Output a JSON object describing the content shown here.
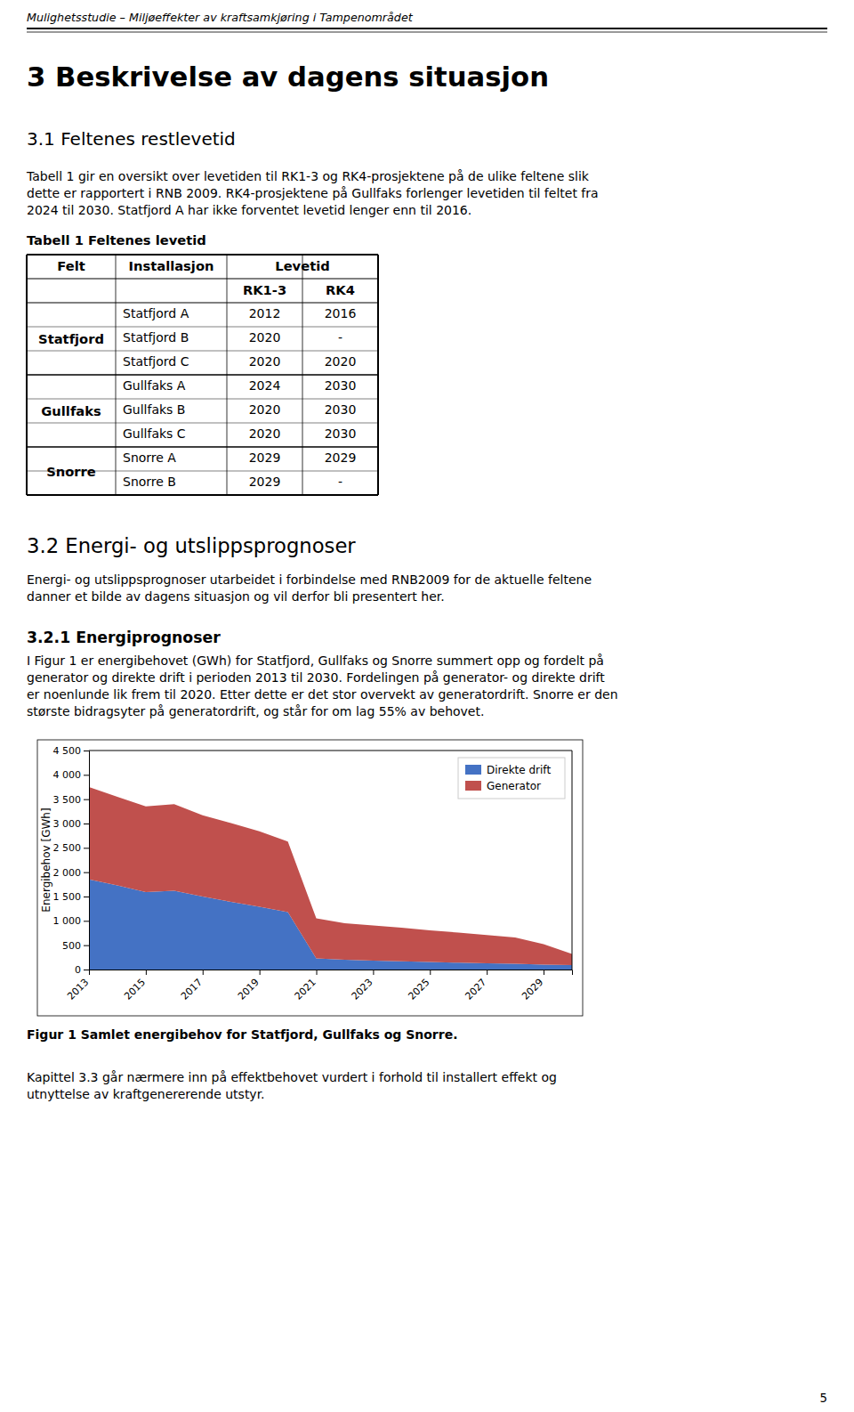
{
  "page": {
    "page_title": "Mulighetsstudie – Miljøeffekter av kraftsamkjøring i Tampenområdet",
    "heading1": "3  Beskrivelse av dagens situasjon",
    "heading2": "3.1 Feltenes restlevetid",
    "para1_lines": [
      "Tabell 1 gir en oversikt over levetiden til RK1-3 og RK4-prosjektene på de ulike feltene slik",
      "dette er rapportert i RNB 2009. RK4-prosjektene på Gullfaks forlenger levetiden til feltet fra",
      "2024 til 2030. Statfjord A har ikke forventet levetid lenger enn til 2016."
    ],
    "heading3": "3.2 Energi- og utslippsprognoser",
    "para2_lines": [
      "Energi- og utslippsprognoser utarbeidet i forbindelse med RNB2009 for de aktuelle feltene",
      "danner et bilde av dagens situasjon og vil derfor bli presentert her."
    ],
    "heading4": "3.2.1  Energiprognoser",
    "para3_lines": [
      "I Figur 1 er energibehovet (GWh) for Statfjord, Gullfaks og Snorre summert opp og fordelt  på",
      "generator og direkte drift i perioden 2013 til 2030. Fordelingen på generator- og direkte drift",
      "er noenlunde lik frem til 2020. Etter dette er det stor overvekt av generatordrift. Snorre er den",
      "største bidragsyter på generatordrift, og står for om lag 55% av behovet."
    ],
    "fig_caption": "Figur 1 Samlet energibehov for Statfjord, Gullfaks og Snorre.",
    "para4_lines": [
      "Kapittel 3.3 går nærmere inn på effektbehovet vurdert i forhold til installert effekt og",
      "utnyttelse av kraftgenererende utstyr."
    ],
    "page_number": "5"
  },
  "table": {
    "title": "Tabell 1 Feltenes levetid",
    "header": [
      "Felt",
      "Installasjon",
      "Levetid"
    ],
    "subheader": [
      "RK1-3",
      "RK4"
    ],
    "groups": [
      {
        "name": "Statfjord",
        "rows": [
          [
            "Statfjord A",
            "2012",
            "2016"
          ],
          [
            "Statfjord B",
            "2020",
            "-"
          ],
          [
            "Statfjord C",
            "2020",
            "2020"
          ]
        ]
      },
      {
        "name": "Gullfaks",
        "rows": [
          [
            "Gullfaks A",
            "2024",
            "2030"
          ],
          [
            "Gullfaks B",
            "2020",
            "2030"
          ],
          [
            "Gullfaks C",
            "2020",
            "2030"
          ]
        ]
      },
      {
        "name": "Snorre",
        "rows": [
          [
            "Snorre A",
            "2029",
            "2029"
          ],
          [
            "Snorre B",
            "2029",
            "-"
          ]
        ]
      }
    ]
  },
  "chart_data": {
    "type": "area",
    "stacked": true,
    "y_label": "Energibehov [GWh]",
    "x": [
      2013,
      2014,
      2015,
      2016,
      2017,
      2018,
      2019,
      2020,
      2021,
      2022,
      2023,
      2024,
      2025,
      2026,
      2027,
      2028,
      2029,
      2030
    ],
    "series": [
      {
        "name": "Direkte drift",
        "color": "#4472C4",
        "values": [
          1850,
          1730,
          1590,
          1620,
          1500,
          1390,
          1290,
          1180,
          230,
          200,
          185,
          170,
          155,
          140,
          130,
          120,
          100,
          90
        ]
      },
      {
        "name": "Generator",
        "color": "#C0504D",
        "values": [
          1900,
          1820,
          1760,
          1780,
          1670,
          1620,
          1550,
          1450,
          820,
          750,
          720,
          690,
          650,
          620,
          580,
          540,
          420,
          230
        ]
      }
    ],
    "xlim": [
      2013,
      2030
    ],
    "xticks": [
      2013,
      2015,
      2017,
      2019,
      2021,
      2023,
      2025,
      2027,
      2029
    ],
    "ylim": [
      0,
      4500
    ],
    "yticks": [
      0,
      500,
      {
        "value": 1000,
        "label": "1 000"
      },
      {
        "value": 1500,
        "label": "1 500"
      },
      {
        "value": 2000,
        "label": "2 000"
      },
      {
        "value": 2500,
        "label": "2 500"
      },
      {
        "value": 3000,
        "label": "3 000"
      },
      {
        "value": 3500,
        "label": "3 500"
      },
      {
        "value": 4000,
        "label": "4 000"
      },
      {
        "value": 4500,
        "label": "4 500"
      }
    ],
    "legend": "upper right",
    "grid": false
  }
}
